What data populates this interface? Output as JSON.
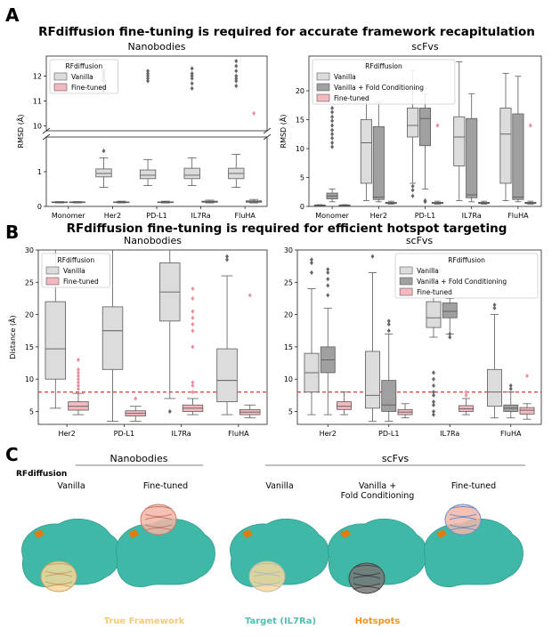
{
  "panel_a": {
    "letter": "A",
    "title": "RFdiffusion fine-tuning is required for accurate framework recapitulation"
  },
  "panel_b": {
    "letter": "B",
    "title": "RFdiffusion fine-tuning is required for efficient hotspot targeting"
  },
  "panel_c": {
    "letter": "C",
    "group_nanobodies": "Nanobodies",
    "group_scfvs": "scFvs",
    "row_label": "RFdiffusion",
    "columns": [
      "Vanilla",
      "Fine-tuned",
      "Vanilla",
      "Vanilla +\nFold Conditioning",
      "Fine-tuned"
    ],
    "legend": [
      {
        "label": "True Framework",
        "color": "#f5c97a"
      },
      {
        "label": "Target (IL7Ra)",
        "color": "#4fbfb0"
      },
      {
        "label": "Hotspots",
        "color": "#f0961e"
      }
    ]
  },
  "colors": {
    "vanilla": "#dcdcdc",
    "fold": "#a0a0a0",
    "finetuned": "#f4b8bf",
    "target": "#3fb8a8",
    "hotspot": "#e07b10",
    "threshold": "#d62728"
  },
  "chart_data": [
    {
      "id": "a-nanobodies",
      "type": "box",
      "title": "Nanobodies",
      "ylabel": "RMSD (Å)",
      "categories": [
        "Monomer",
        "Her2",
        "PD-L1",
        "IL7Ra",
        "FluHA"
      ],
      "broken_axis": {
        "lower": [
          0,
          2
        ],
        "upper": [
          9.8,
          12.8
        ]
      },
      "yticks_lower": [
        0,
        1
      ],
      "yticks_upper": [
        10,
        11,
        12
      ],
      "legend": {
        "title": "RFdiffusion",
        "entries": [
          "Vanilla",
          "Fine-tuned"
        ],
        "loc": "upper left"
      },
      "series": [
        {
          "name": "Vanilla",
          "boxes": [
            {
              "min": 0.1,
              "q1": 0.11,
              "med": 0.12,
              "q3": 0.13,
              "max": 0.14,
              "outliers": []
            },
            {
              "min": 0.55,
              "q1": 0.85,
              "med": 0.95,
              "q3": 1.08,
              "max": 1.4,
              "outliers": [
                1.6,
                11.4,
                11.5,
                11.6,
                11.8,
                11.9,
                12.0,
                12.1,
                12.2
              ]
            },
            {
              "min": 0.6,
              "q1": 0.8,
              "med": 0.9,
              "q3": 1.05,
              "max": 1.35,
              "outliers": [
                11.8,
                11.9,
                12.0,
                12.1,
                12.2
              ]
            },
            {
              "min": 0.6,
              "q1": 0.8,
              "med": 0.9,
              "q3": 1.1,
              "max": 1.4,
              "outliers": [
                11.5,
                11.7,
                11.9,
                12.0,
                12.1,
                12.3
              ]
            },
            {
              "min": 0.55,
              "q1": 0.8,
              "med": 0.95,
              "q3": 1.1,
              "max": 1.5,
              "outliers": [
                11.6,
                11.8,
                11.9,
                12.0,
                12.2,
                12.4,
                12.6
              ]
            }
          ]
        },
        {
          "name": "Fine-tuned",
          "boxes": [
            {
              "min": 0.1,
              "q1": 0.11,
              "med": 0.12,
              "q3": 0.13,
              "max": 0.14,
              "outliers": []
            },
            {
              "min": 0.1,
              "q1": 0.11,
              "med": 0.12,
              "q3": 0.13,
              "max": 0.15,
              "outliers": []
            },
            {
              "min": 0.1,
              "q1": 0.11,
              "med": 0.12,
              "q3": 0.13,
              "max": 0.15,
              "outliers": []
            },
            {
              "min": 0.1,
              "q1": 0.12,
              "med": 0.13,
              "q3": 0.15,
              "max": 0.18,
              "outliers": []
            },
            {
              "min": 0.1,
              "q1": 0.12,
              "med": 0.14,
              "q3": 0.16,
              "max": 0.2,
              "outliers": [
                10.5
              ]
            }
          ]
        }
      ]
    },
    {
      "id": "a-scfvs",
      "type": "box",
      "title": "scFvs",
      "ylabel": "RMSD (Å)",
      "categories": [
        "Monomer",
        "Her2",
        "PD-L1",
        "IL7Ra",
        "FluHA"
      ],
      "ylim": [
        0,
        26
      ],
      "yticks": [
        0,
        5,
        10,
        15,
        20
      ],
      "legend": {
        "title": "RFdiffusion",
        "entries": [
          "Vanilla",
          "Vanilla + Fold Conditioning",
          "Fine-tuned"
        ],
        "loc": "upper left"
      },
      "series": [
        {
          "name": "Vanilla",
          "boxes": [
            {
              "min": 0.1,
              "q1": 0.15,
              "med": 0.2,
              "q3": 0.25,
              "max": 0.3,
              "outliers": []
            },
            {
              "min": 1.0,
              "q1": 4.0,
              "med": 11.0,
              "q3": 15.0,
              "max": 18.5,
              "outliers": []
            },
            {
              "min": 4.0,
              "q1": 12.0,
              "med": 14.0,
              "q3": 17.0,
              "max": 23.5,
              "outliers": [
                1.8,
                2.8,
                3.5
              ]
            },
            {
              "min": 1.0,
              "q1": 7.0,
              "med": 12.0,
              "q3": 15.5,
              "max": 25.0,
              "outliers": []
            },
            {
              "min": 1.0,
              "q1": 4.0,
              "med": 12.5,
              "q3": 17.0,
              "max": 23.0,
              "outliers": []
            }
          ]
        },
        {
          "name": "Vanilla + Fold Conditioning",
          "boxes": [
            {
              "min": 0.8,
              "q1": 1.3,
              "med": 1.8,
              "q3": 2.3,
              "max": 3.0,
              "outliers": [
                10.3,
                11.0,
                11.8,
                12.5,
                13.2,
                14.0,
                14.8,
                15.5,
                16.3,
                17.0
              ]
            },
            {
              "min": 0.8,
              "q1": 1.2,
              "med": 1.6,
              "q3": 13.8,
              "max": 18.0,
              "outliers": []
            },
            {
              "min": 3.0,
              "q1": 10.5,
              "med": 15.2,
              "q3": 17.0,
              "max": 19.5,
              "outliers": [
                1.0,
                0.8
              ]
            },
            {
              "min": 0.8,
              "q1": 1.5,
              "med": 2.0,
              "q3": 15.2,
              "max": 19.5,
              "outliers": []
            },
            {
              "min": 0.8,
              "q1": 1.2,
              "med": 1.6,
              "q3": 16.0,
              "max": 22.5,
              "outliers": []
            }
          ]
        },
        {
          "name": "Fine-tuned",
          "boxes": [
            {
              "min": 0.1,
              "q1": 0.15,
              "med": 0.2,
              "q3": 0.25,
              "max": 0.3,
              "outliers": []
            },
            {
              "min": 0.4,
              "q1": 0.5,
              "med": 0.6,
              "q3": 0.7,
              "max": 0.9,
              "outliers": []
            },
            {
              "min": 0.4,
              "q1": 0.5,
              "med": 0.6,
              "q3": 0.7,
              "max": 0.9,
              "outliers": [
                14.0
              ]
            },
            {
              "min": 0.4,
              "q1": 0.5,
              "med": 0.6,
              "q3": 0.7,
              "max": 0.9,
              "outliers": []
            },
            {
              "min": 0.4,
              "q1": 0.5,
              "med": 0.6,
              "q3": 0.7,
              "max": 0.9,
              "outliers": [
                14.0
              ]
            }
          ]
        }
      ]
    },
    {
      "id": "b-nanobodies",
      "type": "box",
      "title": "Nanobodies",
      "ylabel": "Distance (Å)",
      "categories": [
        "Her2",
        "PD-L1",
        "IL7Ra",
        "FluHA"
      ],
      "ylim": [
        3,
        30
      ],
      "yticks": [
        5,
        10,
        15,
        20,
        25,
        30
      ],
      "threshold": 8,
      "legend": {
        "title": "RFdiffusion",
        "entries": [
          "Vanilla",
          "Fine-tuned"
        ],
        "loc": "upper left"
      },
      "series": [
        {
          "name": "Vanilla",
          "boxes": [
            {
              "min": 5.5,
              "q1": 10.0,
              "med": 14.7,
              "q3": 22.0,
              "max": 31.0,
              "outliers": []
            },
            {
              "min": 3.5,
              "q1": 11.5,
              "med": 17.5,
              "q3": 21.2,
              "max": 31.0,
              "outliers": []
            },
            {
              "min": 7.0,
              "q1": 19.0,
              "med": 23.5,
              "q3": 28.0,
              "max": 31.0,
              "outliers": [
                5.0
              ]
            },
            {
              "min": 4.5,
              "q1": 6.5,
              "med": 9.8,
              "q3": 14.7,
              "max": 26.0,
              "outliers": [
                28.5,
                29.0
              ]
            }
          ]
        },
        {
          "name": "Fine-tuned",
          "boxes": [
            {
              "min": 4.5,
              "q1": 5.2,
              "med": 5.8,
              "q3": 6.5,
              "max": 7.8,
              "outliers": [
                8.5,
                9.0,
                9.5,
                10.0,
                10.5,
                11.0,
                11.5,
                13.0
              ]
            },
            {
              "min": 3.5,
              "q1": 4.3,
              "med": 4.7,
              "q3": 5.1,
              "max": 5.8,
              "outliers": [
                7.0
              ]
            },
            {
              "min": 4.5,
              "q1": 5.0,
              "med": 5.5,
              "q3": 6.0,
              "max": 7.0,
              "outliers": [
                8.0,
                9.0,
                9.5,
                15.0,
                17.5,
                18.5,
                19.5,
                20.5,
                22.5,
                24.0
              ]
            },
            {
              "min": 4.0,
              "q1": 4.5,
              "med": 4.9,
              "q3": 5.3,
              "max": 6.0,
              "outliers": [
                23.0
              ]
            }
          ]
        }
      ]
    },
    {
      "id": "b-scfvs",
      "type": "box",
      "title": "scFvs",
      "ylabel": "",
      "categories": [
        "Her2",
        "PD-L1",
        "IL7Ra",
        "FluHA"
      ],
      "ylim": [
        3,
        30
      ],
      "yticks": [
        5,
        10,
        15,
        20,
        25,
        30
      ],
      "threshold": 8,
      "legend": {
        "title": "RFdiffusion",
        "entries": [
          "Vanilla",
          "Vanilla + Fold Conditioning",
          "Fine-tuned"
        ],
        "loc": "upper right"
      },
      "series": [
        {
          "name": "Vanilla",
          "boxes": [
            {
              "min": 4.5,
              "q1": 8.0,
              "med": 11.0,
              "q3": 14.0,
              "max": 24.0,
              "outliers": [
                26.5,
                28.0,
                28.5
              ]
            },
            {
              "min": 3.5,
              "q1": 5.5,
              "med": 7.5,
              "q3": 14.3,
              "max": 26.5,
              "outliers": [
                29.0
              ]
            },
            {
              "min": 16.5,
              "q1": 18.0,
              "med": 19.5,
              "q3": 22.0,
              "max": 27.0,
              "outliers": [
                4.5,
                5.0,
                6.0,
                6.5,
                7.5,
                8.0,
                9.0,
                10.0,
                11.0
              ]
            },
            {
              "min": 4.0,
              "q1": 5.8,
              "med": 8.0,
              "q3": 11.5,
              "max": 20.0,
              "outliers": [
                21.0,
                21.5
              ]
            }
          ]
        },
        {
          "name": "Vanilla + Fold Conditioning",
          "boxes": [
            {
              "min": 4.5,
              "q1": 11.0,
              "med": 13.0,
              "q3": 15.0,
              "max": 21.0,
              "outliers": [
                23.0,
                24.5,
                25.5,
                26.5,
                27.0
              ]
            },
            {
              "min": 3.5,
              "q1": 5.0,
              "med": 6.0,
              "q3": 9.8,
              "max": 17.0,
              "outliers": [
                17.5,
                18.5,
                19.0
              ]
            },
            {
              "min": 17.0,
              "q1": 19.5,
              "med": 20.5,
              "q3": 21.8,
              "max": 22.5,
              "outliers": [
                16.5,
                17.0
              ]
            },
            {
              "min": 4.0,
              "q1": 5.0,
              "med": 5.5,
              "q3": 6.0,
              "max": 8.0,
              "outliers": [
                8.5,
                9.0
              ]
            }
          ]
        },
        {
          "name": "Fine-tuned",
          "boxes": [
            {
              "min": 4.5,
              "q1": 5.3,
              "med": 5.8,
              "q3": 6.5,
              "max": 8.0,
              "outliers": []
            },
            {
              "min": 4.0,
              "q1": 4.5,
              "med": 4.9,
              "q3": 5.3,
              "max": 6.2,
              "outliers": []
            },
            {
              "min": 4.5,
              "q1": 5.0,
              "med": 5.4,
              "q3": 5.9,
              "max": 7.0,
              "outliers": [
                7.5,
                8.0
              ]
            },
            {
              "min": 3.8,
              "q1": 4.6,
              "med": 5.2,
              "q3": 5.6,
              "max": 6.2,
              "outliers": [
                10.5
              ]
            }
          ]
        }
      ]
    }
  ]
}
